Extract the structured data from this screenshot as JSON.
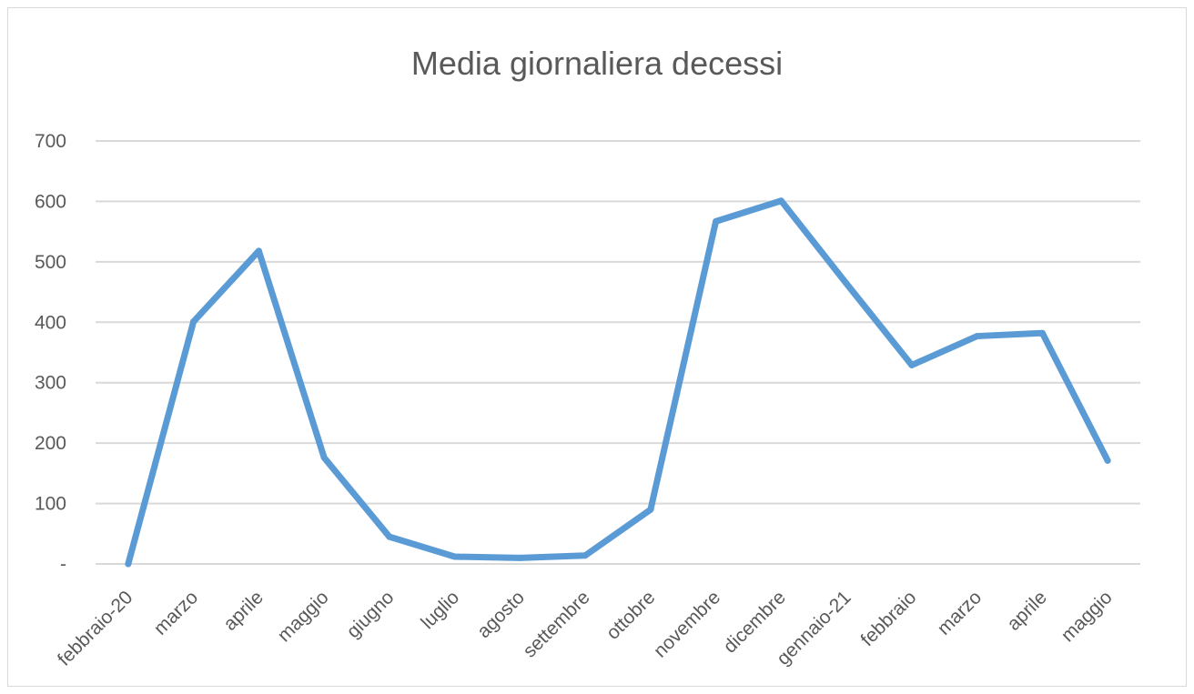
{
  "chart_data": {
    "type": "line",
    "title": "Media giornaliera decessi",
    "xlabel": "",
    "ylabel": "",
    "categories": [
      "febbraio-20",
      "marzo",
      "aprile",
      "maggio",
      "giugno",
      "luglio",
      "agosto",
      "settembre",
      "ottobre",
      "novembre",
      "dicembre",
      "gennaio-21",
      "febbraio",
      "marzo",
      "aprile",
      "maggio"
    ],
    "series": [
      {
        "values": [
          0,
          401,
          518,
          176,
          45,
          12,
          10,
          14,
          90,
          567,
          601,
          464,
          329,
          377,
          382,
          171
        ],
        "color": "#5b9bd5"
      }
    ],
    "ylim": [
      0,
      700
    ],
    "yticks": [
      0,
      100,
      200,
      300,
      400,
      500,
      600,
      700
    ],
    "ytick_labels": [
      "-",
      "100",
      "200",
      "300",
      "400",
      "500",
      "600",
      "700"
    ],
    "grid": true,
    "gridline_color": "#d9d9d9",
    "legend": "none"
  }
}
